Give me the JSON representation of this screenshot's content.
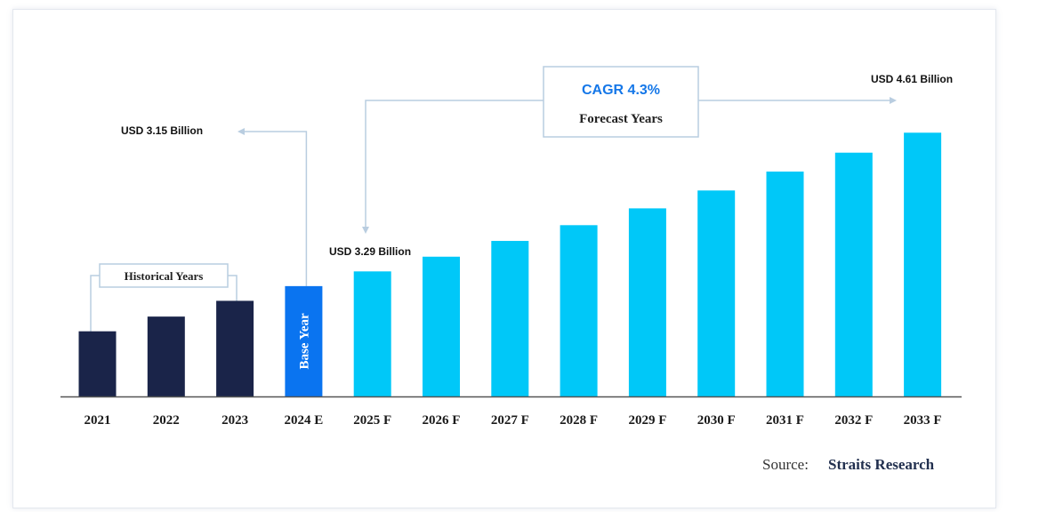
{
  "chart_data": {
    "type": "bar",
    "categories": [
      "2021",
      "2022",
      "2023",
      "2024 E",
      "2025 F",
      "2026 F",
      "2027 F",
      "2028 F",
      "2029 F",
      "2030 F",
      "2031 F",
      "2032 F",
      "2033 F"
    ],
    "values": [
      2.72,
      2.86,
      3.01,
      3.15,
      3.29,
      3.43,
      3.58,
      3.73,
      3.89,
      4.06,
      4.24,
      4.42,
      4.61
    ],
    "bar_groups": [
      "historical",
      "historical",
      "historical",
      "base",
      "forecast",
      "forecast",
      "forecast",
      "forecast",
      "forecast",
      "forecast",
      "forecast",
      "forecast",
      "forecast"
    ],
    "colors": {
      "historical": "#1a2449",
      "base": "#0a74f0",
      "forecast": "#00c8f8",
      "axis": "#555555",
      "connector": "#b9cde0",
      "cagr_text": "#1577e8"
    },
    "ylim": [
      2.1,
      4.9
    ],
    "grid": false,
    "annotations": {
      "base_value": "USD 3.15 Billion",
      "first_forecast_value": "USD 3.29 Billion",
      "final_value": "USD 4.61 Billion",
      "cagr": "CAGR 4.3%",
      "forecast_label": "Forecast Years",
      "historical_label": "Historical Years",
      "base_year_label": "Base Year"
    },
    "source": {
      "prefix": "Source:",
      "name": "Straits Research"
    }
  }
}
